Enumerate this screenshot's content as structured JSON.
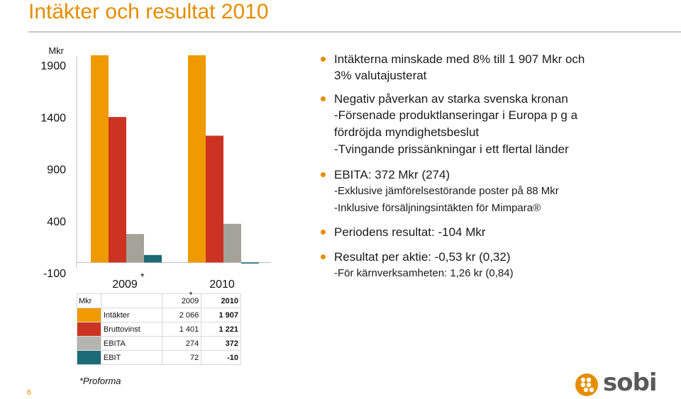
{
  "title": "Intäkter och resultat 2010",
  "page_number": "6",
  "footnote": "*Proforma",
  "logo": {
    "text": "sobi",
    "mark_color": "#e58d00"
  },
  "colors": {
    "accent": "#e58d00",
    "intakter": "#ee9a00",
    "bruttovinst": "#cc3322",
    "ebita": "#a3a39a",
    "ebit": "#1d6a78"
  },
  "chart_data": {
    "type": "bar",
    "ylabel": "Mkr",
    "ylim": [
      -100,
      1900
    ],
    "yticks": [
      "1900",
      "1400",
      "900",
      "400",
      "-100"
    ],
    "categories": [
      "2009",
      "2010"
    ],
    "category_marks": [
      "*",
      ""
    ],
    "series": [
      {
        "name": "Intäkter",
        "values": [
          2066,
          1907
        ]
      },
      {
        "name": "Bruttovinst",
        "values": [
          1401,
          1221
        ]
      },
      {
        "name": "EBITA",
        "values": [
          274,
          372
        ]
      },
      {
        "name": "EBIT",
        "values": [
          72,
          -10
        ]
      }
    ],
    "grid": false,
    "legend": "table-below"
  },
  "table": {
    "header": {
      "unit": "Mkr",
      "col1": "2009",
      "col1_mark": "*",
      "col2": "2010"
    },
    "rows": [
      {
        "label": "Intäkter",
        "v2009": "2 066",
        "v2010": "1 907"
      },
      {
        "label": "Bruttovinst",
        "v2009": "1 401",
        "v2010": "1 221"
      },
      {
        "label": "EBITA",
        "v2009": "274",
        "v2010": "372"
      },
      {
        "label": "EBIT",
        "v2009": "72",
        "v2010": "-10"
      }
    ]
  },
  "bullets": [
    {
      "main": [
        "Intäkterna minskade med 8% till 1 907 Mkr och",
        "3% valutajusterat"
      ],
      "subs": []
    },
    {
      "main": [
        "Negativ påverkan av starka svenska kronan"
      ],
      "subs": [
        "-Försenade produktlanseringar i Europa p g a",
        " fördröjda myndighetsbeslut",
        "-Tvingande prissänkningar i ett flertal länder"
      ]
    },
    {
      "main": [
        "EBITA: 372 Mkr (274)"
      ],
      "subs_small": [
        "-Exklusive jämförelsestörande poster på 88 Mkr",
        "-Inklusive försäljningsintäkten för Mimpara®"
      ]
    },
    {
      "main": [
        "Periodens resultat: -104 Mkr"
      ],
      "subs": []
    },
    {
      "main": [
        "Resultat per aktie: -0,53 kr (0,32)"
      ],
      "subs_small": [
        "-För kärnverksamheten: 1,26 kr (0,84)"
      ]
    }
  ]
}
